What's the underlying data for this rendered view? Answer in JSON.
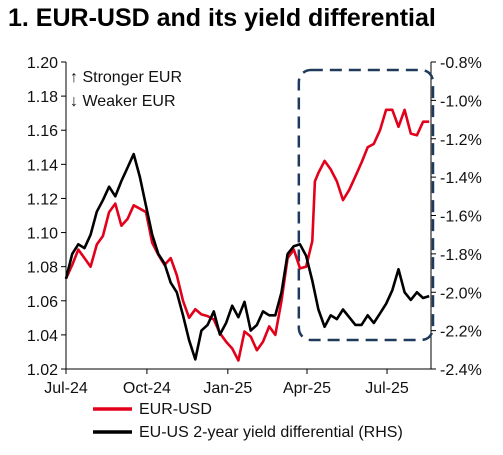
{
  "title": "1. EUR-USD and its yield differential",
  "chart_data": {
    "type": "line",
    "title": "1. EUR-USD and its yield differential",
    "x_ticks": [
      "Jul-24",
      "Oct-24",
      "Jan-25",
      "Apr-25",
      "Jul-25"
    ],
    "x_range": [
      "2024-07-01",
      "2025-08-20"
    ],
    "y_left": {
      "ticks": [
        "1.20",
        "1.18",
        "1.16",
        "1.14",
        "1.12",
        "1.10",
        "1.08",
        "1.06",
        "1.04",
        "1.02"
      ],
      "min": 1.02,
      "max": 1.2
    },
    "y_right": {
      "ticks": [
        "-0.8%",
        "-1.0%",
        "-1.2%",
        "-1.4%",
        "-1.6%",
        "-1.8%",
        "-2.0%",
        "-2.2%",
        "-2.4%"
      ],
      "min": -2.4,
      "max": -0.8
    },
    "annotations": {
      "up": "↑ Stronger EUR",
      "down": "↓ Weaker EUR"
    },
    "highlight_box": {
      "x_start": "2025-03-25",
      "x_end": "2025-08-20",
      "style": "dashed"
    },
    "series": [
      {
        "name": "EUR-USD",
        "axis": "left",
        "color": "#e3001b",
        "points": [
          [
            "2024-07-01",
            1.073
          ],
          [
            "2024-07-08",
            1.081
          ],
          [
            "2024-07-15",
            1.09
          ],
          [
            "2024-07-22",
            1.085
          ],
          [
            "2024-07-29",
            1.08
          ],
          [
            "2024-08-05",
            1.093
          ],
          [
            "2024-08-12",
            1.098
          ],
          [
            "2024-08-19",
            1.112
          ],
          [
            "2024-08-26",
            1.117
          ],
          [
            "2024-09-02",
            1.104
          ],
          [
            "2024-09-09",
            1.108
          ],
          [
            "2024-09-16",
            1.116
          ],
          [
            "2024-09-23",
            1.114
          ],
          [
            "2024-09-30",
            1.112
          ],
          [
            "2024-10-07",
            1.094
          ],
          [
            "2024-10-14",
            1.087
          ],
          [
            "2024-10-21",
            1.081
          ],
          [
            "2024-10-28",
            1.085
          ],
          [
            "2024-11-04",
            1.075
          ],
          [
            "2024-11-11",
            1.06
          ],
          [
            "2024-11-18",
            1.05
          ],
          [
            "2024-11-25",
            1.055
          ],
          [
            "2024-12-02",
            1.052
          ],
          [
            "2024-12-09",
            1.051
          ],
          [
            "2024-12-16",
            1.049
          ],
          [
            "2024-12-23",
            1.041
          ],
          [
            "2024-12-30",
            1.036
          ],
          [
            "2025-01-06",
            1.032
          ],
          [
            "2025-01-13",
            1.025
          ],
          [
            "2025-01-20",
            1.042
          ],
          [
            "2025-01-27",
            1.039
          ],
          [
            "2025-02-03",
            1.031
          ],
          [
            "2025-02-10",
            1.036
          ],
          [
            "2025-02-17",
            1.045
          ],
          [
            "2025-02-24",
            1.04
          ],
          [
            "2025-03-03",
            1.06
          ],
          [
            "2025-03-10",
            1.085
          ],
          [
            "2025-03-17",
            1.09
          ],
          [
            "2025-03-24",
            1.079
          ],
          [
            "2025-03-31",
            1.08
          ],
          [
            "2025-04-07",
            1.095
          ],
          [
            "2025-04-10",
            1.13
          ],
          [
            "2025-04-14",
            1.135
          ],
          [
            "2025-04-21",
            1.142
          ],
          [
            "2025-04-28",
            1.137
          ],
          [
            "2025-05-05",
            1.13
          ],
          [
            "2025-05-12",
            1.119
          ],
          [
            "2025-05-19",
            1.125
          ],
          [
            "2025-05-26",
            1.133
          ],
          [
            "2025-06-02",
            1.141
          ],
          [
            "2025-06-09",
            1.15
          ],
          [
            "2025-06-16",
            1.152
          ],
          [
            "2025-06-23",
            1.16
          ],
          [
            "2025-06-30",
            1.172
          ],
          [
            "2025-07-07",
            1.172
          ],
          [
            "2025-07-14",
            1.162
          ],
          [
            "2025-07-21",
            1.172
          ],
          [
            "2025-07-28",
            1.158
          ],
          [
            "2025-08-04",
            1.157
          ],
          [
            "2025-08-11",
            1.165
          ],
          [
            "2025-08-18",
            1.165
          ]
        ]
      },
      {
        "name": "EU-US 2-year yield differential (RHS)",
        "axis": "right",
        "color": "#000000",
        "points": [
          [
            "2024-07-01",
            -1.93
          ],
          [
            "2024-07-08",
            -1.8
          ],
          [
            "2024-07-15",
            -1.75
          ],
          [
            "2024-07-22",
            -1.77
          ],
          [
            "2024-07-29",
            -1.7
          ],
          [
            "2024-08-05",
            -1.58
          ],
          [
            "2024-08-12",
            -1.52
          ],
          [
            "2024-08-19",
            -1.45
          ],
          [
            "2024-08-26",
            -1.5
          ],
          [
            "2024-09-02",
            -1.42
          ],
          [
            "2024-09-09",
            -1.35
          ],
          [
            "2024-09-16",
            -1.28
          ],
          [
            "2024-09-23",
            -1.4
          ],
          [
            "2024-09-30",
            -1.55
          ],
          [
            "2024-10-07",
            -1.7
          ],
          [
            "2024-10-14",
            -1.8
          ],
          [
            "2024-10-21",
            -1.85
          ],
          [
            "2024-10-28",
            -1.95
          ],
          [
            "2024-11-04",
            -2.0
          ],
          [
            "2024-11-11",
            -2.12
          ],
          [
            "2024-11-18",
            -2.25
          ],
          [
            "2024-11-25",
            -2.35
          ],
          [
            "2024-12-02",
            -2.2
          ],
          [
            "2024-12-09",
            -2.17
          ],
          [
            "2024-12-16",
            -2.1
          ],
          [
            "2024-12-23",
            -2.22
          ],
          [
            "2024-12-30",
            -2.16
          ],
          [
            "2025-01-06",
            -2.07
          ],
          [
            "2025-01-13",
            -2.13
          ],
          [
            "2025-01-20",
            -2.05
          ],
          [
            "2025-01-27",
            -2.2
          ],
          [
            "2025-02-03",
            -2.17
          ],
          [
            "2025-02-10",
            -2.1
          ],
          [
            "2025-02-17",
            -2.12
          ],
          [
            "2025-02-24",
            -2.12
          ],
          [
            "2025-03-03",
            -2.0
          ],
          [
            "2025-03-10",
            -1.8
          ],
          [
            "2025-03-17",
            -1.76
          ],
          [
            "2025-03-24",
            -1.75
          ],
          [
            "2025-03-31",
            -1.81
          ],
          [
            "2025-04-07",
            -1.94
          ],
          [
            "2025-04-14",
            -2.09
          ],
          [
            "2025-04-21",
            -2.18
          ],
          [
            "2025-04-28",
            -2.12
          ],
          [
            "2025-05-05",
            -2.14
          ],
          [
            "2025-05-12",
            -2.09
          ],
          [
            "2025-05-19",
            -2.13
          ],
          [
            "2025-05-26",
            -2.17
          ],
          [
            "2025-06-02",
            -2.17
          ],
          [
            "2025-06-09",
            -2.12
          ],
          [
            "2025-06-16",
            -2.16
          ],
          [
            "2025-06-23",
            -2.11
          ],
          [
            "2025-06-30",
            -2.06
          ],
          [
            "2025-07-07",
            -1.99
          ],
          [
            "2025-07-14",
            -1.88
          ],
          [
            "2025-07-21",
            -2.0
          ],
          [
            "2025-07-28",
            -2.04
          ],
          [
            "2025-08-04",
            -2.0
          ],
          [
            "2025-08-11",
            -2.03
          ],
          [
            "2025-08-18",
            -2.02
          ]
        ]
      }
    ]
  }
}
